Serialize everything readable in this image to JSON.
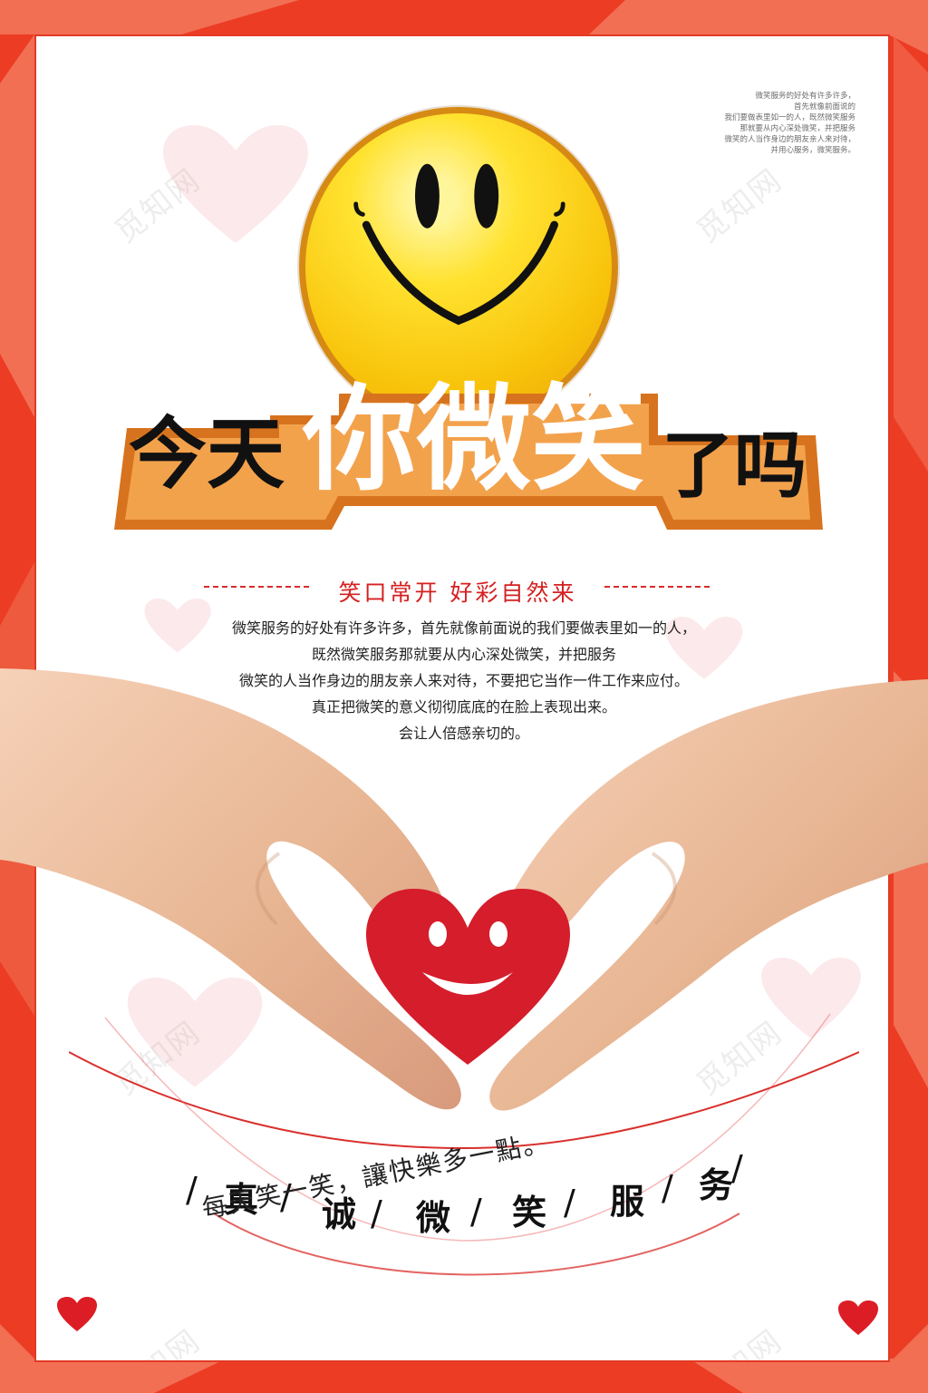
{
  "title": {
    "part1": "今天",
    "emphasis": "你微笑",
    "part2": "了吗"
  },
  "slogan": "笑口常开   好彩自然来",
  "paragraph_lines": [
    "微笑服务的好处有许多许多，首先就像前面说的我们要做表里如一的人，",
    "既然微笑服务那就要从内心深处微笑，并把服务",
    "微笑的人当作身边的朋友亲人来对待，不要把它当作一件工作来应付。",
    "真正把微笑的意义彻彻底底的在脸上表现出来。",
    "会让人倍感亲切的。"
  ],
  "fine_print_lines": [
    "微笑服务的好处有许多许多，",
    "首先就像前面说的",
    "我们要做表里如一的人，既然微笑服务",
    "那就要从内心深处微笑，并把服务",
    "微笑的人当作身边的朋友亲人来对待，",
    "并用心服务，微笑服务。"
  ],
  "service_items": [
    "真",
    "诚",
    "微",
    "笑",
    "服",
    "务"
  ],
  "tagline": "每天笑一笑，讓快樂多一點。",
  "watermark_text": "觅知网",
  "colors": {
    "frame_red": "#e8281e",
    "frame_coral": "#f36f55",
    "title_orange": "#d9731f",
    "slogan_red": "#d52020",
    "heart_red": "#d81d2d",
    "smiley_yellow": "#ffd21f"
  },
  "icons": {
    "smiley": "smiley-face-icon",
    "center_heart": "smiling-heart-icon",
    "corner_hearts": "heart-icon"
  }
}
